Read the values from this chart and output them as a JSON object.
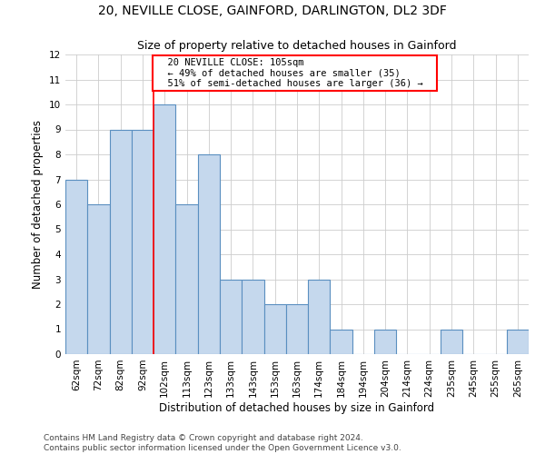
{
  "title1": "20, NEVILLE CLOSE, GAINFORD, DARLINGTON, DL2 3DF",
  "title2": "Size of property relative to detached houses in Gainford",
  "xlabel": "Distribution of detached houses by size in Gainford",
  "ylabel": "Number of detached properties",
  "categories": [
    "62sqm",
    "72sqm",
    "82sqm",
    "92sqm",
    "102sqm",
    "113sqm",
    "123sqm",
    "133sqm",
    "143sqm",
    "153sqm",
    "163sqm",
    "174sqm",
    "184sqm",
    "194sqm",
    "204sqm",
    "214sqm",
    "224sqm",
    "235sqm",
    "245sqm",
    "255sqm",
    "265sqm"
  ],
  "values": [
    7,
    6,
    9,
    9,
    10,
    6,
    8,
    3,
    3,
    2,
    2,
    3,
    1,
    0,
    1,
    0,
    0,
    1,
    0,
    0,
    1
  ],
  "bar_color": "#c5d8ed",
  "bar_edge_color": "#5a8fc0",
  "highlight_index": 4,
  "red_line_x": 4,
  "annotation_text": "  20 NEVILLE CLOSE: 105sqm  \n  ← 49% of detached houses are smaller (35)  \n  51% of semi-detached houses are larger (36) →  ",
  "annotation_box_color": "white",
  "annotation_box_edge_color": "red",
  "ylim": [
    0,
    12
  ],
  "yticks": [
    0,
    1,
    2,
    3,
    4,
    5,
    6,
    7,
    8,
    9,
    10,
    11,
    12
  ],
  "footnote": "Contains HM Land Registry data © Crown copyright and database right 2024.\nContains public sector information licensed under the Open Government Licence v3.0.",
  "background_color": "white",
  "grid_color": "#cccccc",
  "title1_fontsize": 10,
  "title2_fontsize": 9,
  "xlabel_fontsize": 8.5,
  "ylabel_fontsize": 8.5,
  "tick_fontsize": 7.5,
  "annotation_fontsize": 7.5,
  "footnote_fontsize": 6.5
}
